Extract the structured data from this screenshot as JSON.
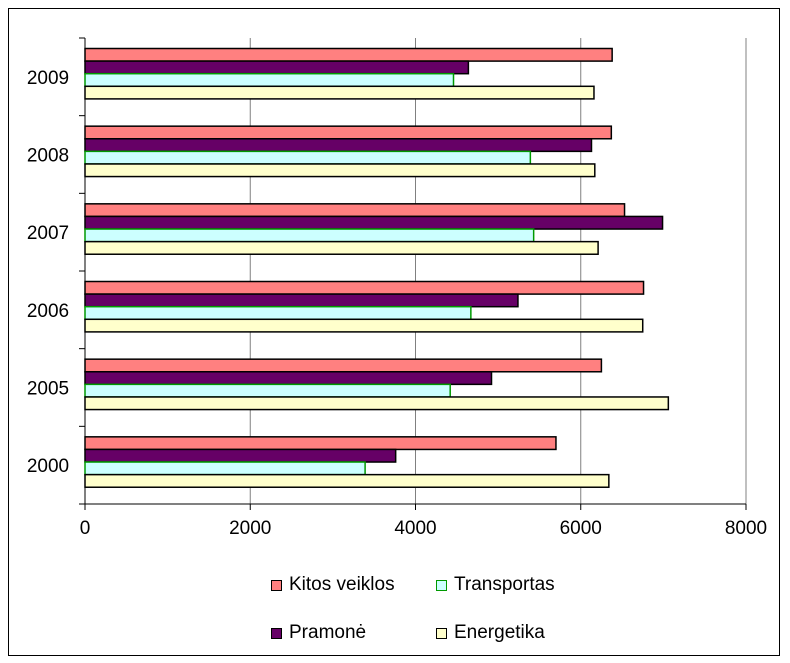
{
  "chart_data": {
    "type": "bar",
    "orientation": "horizontal",
    "categories": [
      "2000",
      "2005",
      "2006",
      "2007",
      "2008",
      "2009"
    ],
    "series": [
      {
        "name": "Kitos veiklos",
        "color": "#ff8080",
        "edge": "#000000",
        "values": [
          5700,
          6250,
          6760,
          6530,
          6370,
          6380
        ]
      },
      {
        "name": "Pramonė",
        "color": "#660066",
        "edge": "#000000",
        "values": [
          3760,
          4920,
          5240,
          6990,
          6130,
          4640
        ]
      },
      {
        "name": "Transportas",
        "color": "#ccffff",
        "edge": "#009900",
        "values": [
          3390,
          4420,
          4670,
          5430,
          5390,
          4460
        ]
      },
      {
        "name": "Energetika",
        "color": "#ffffcc",
        "edge": "#000000",
        "values": [
          6340,
          7060,
          6750,
          6210,
          6170,
          6160
        ]
      }
    ],
    "xlim": [
      0,
      8000
    ],
    "xticks": [
      "0",
      "2000",
      "4000",
      "6000",
      "8000"
    ],
    "grid": "vertical",
    "legend_position": "bottom",
    "title": "",
    "xlabel": "",
    "ylabel": ""
  },
  "legend": {
    "kitos": "Kitos veiklos",
    "transportas": "Transportas",
    "pramone": "Pramonė",
    "energetika": "Energetika"
  }
}
